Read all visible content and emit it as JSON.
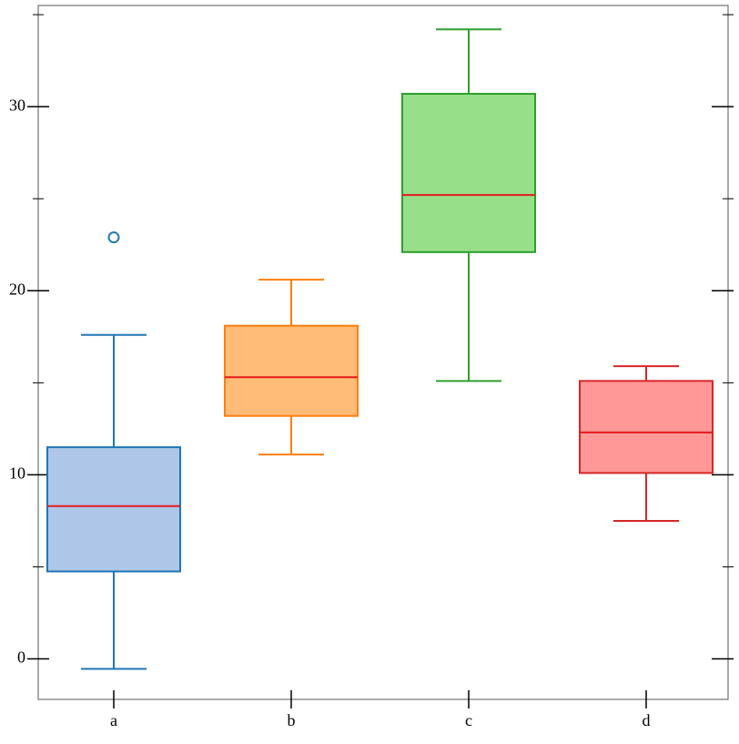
{
  "chart_data": {
    "type": "box",
    "categories": [
      "a",
      "b",
      "c",
      "d"
    ],
    "boxes": [
      {
        "whislo": -0.54,
        "q1": 4.75,
        "med": 8.3,
        "q3": 11.5,
        "whishi": 17.6,
        "fliers": [
          22.9
        ],
        "color": "#1f77b4",
        "fill": "#aec7e8"
      },
      {
        "whislo": 11.1,
        "q1": 13.2,
        "med": 15.3,
        "q3": 18.1,
        "whishi": 20.6,
        "fliers": [],
        "color": "#ff7f0e",
        "fill": "#ffbb78"
      },
      {
        "whislo": 15.1,
        "q1": 22.1,
        "med": 25.2,
        "q3": 30.7,
        "whishi": 34.2,
        "fliers": [],
        "color": "#2ca02c",
        "fill": "#98df8a"
      },
      {
        "whislo": 7.5,
        "q1": 10.1,
        "med": 12.3,
        "q3": 15.1,
        "whishi": 15.9,
        "fliers": [],
        "color": "#d62728",
        "fill": "#ff9896"
      }
    ],
    "median_color": "#e41a1c",
    "ylim": [
      -2.2,
      35.5
    ],
    "yticks": [
      0,
      10,
      20,
      30
    ],
    "minor_yticks": [
      5,
      15,
      25,
      35
    ]
  }
}
